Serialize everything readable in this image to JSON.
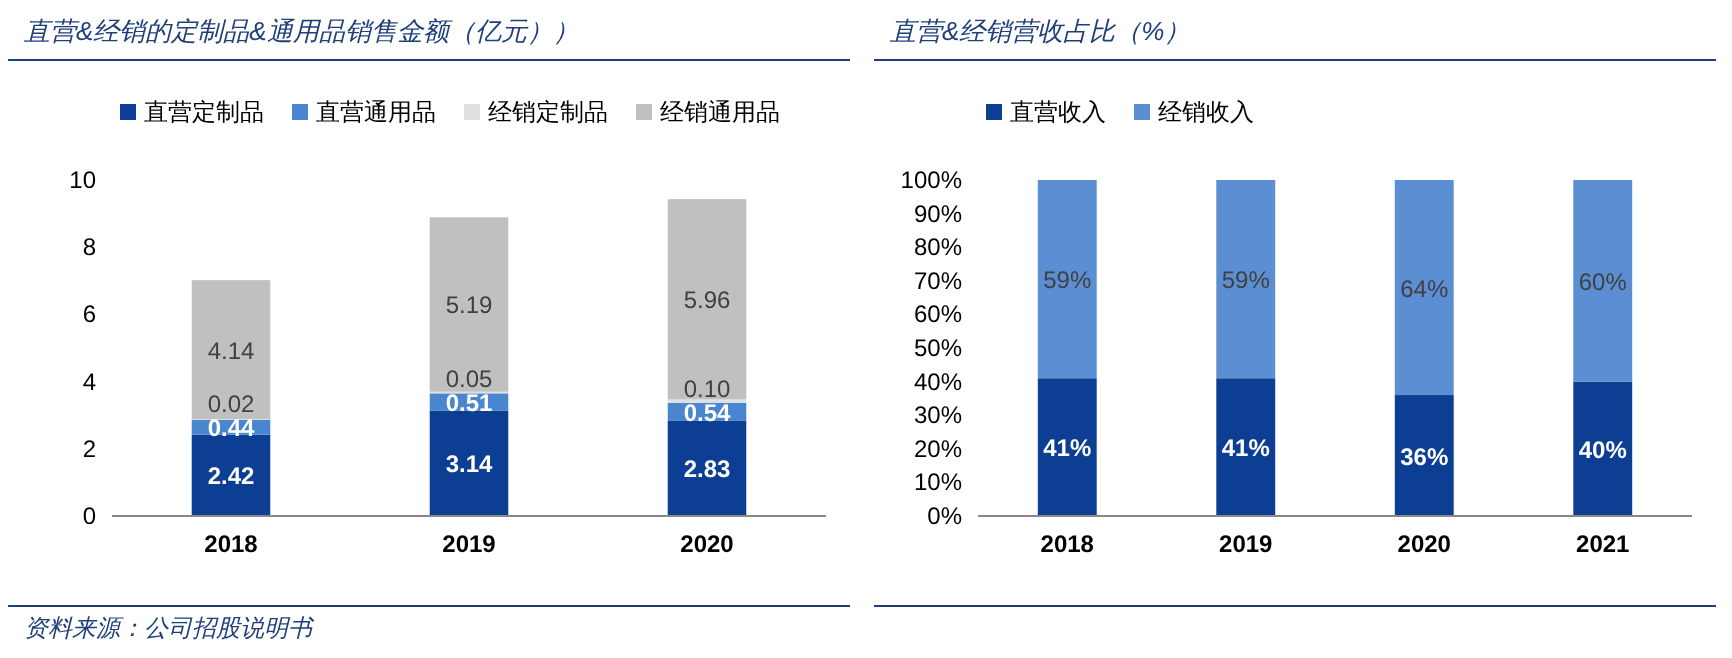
{
  "chart_data": [
    {
      "type": "bar",
      "title": "直营&经销的定制品&通用品销售金额（亿元））",
      "categories": [
        "2018",
        "2019",
        "2020"
      ],
      "stacked": true,
      "legend": "top",
      "data_labels": true,
      "ylim": [
        0,
        10
      ],
      "yticks": [
        0,
        2,
        4,
        6,
        8,
        10
      ],
      "series": [
        {
          "name": "直营定制品",
          "color": "#0c3f94",
          "values": [
            2.42,
            3.14,
            2.83
          ]
        },
        {
          "name": "直营通用品",
          "color": "#4a86d0",
          "values": [
            0.44,
            0.51,
            0.54
          ]
        },
        {
          "name": "经销定制品",
          "color": "#dfe0e2",
          "values": [
            0.02,
            0.05,
            0.1
          ],
          "value_labels": [
            "0.02",
            "0.05",
            "0.10"
          ]
        },
        {
          "name": "经销通用品",
          "color": "#c0c0c0",
          "values": [
            4.14,
            5.19,
            5.96
          ]
        }
      ],
      "annotations": [
        "资料来源：公司招股说明书"
      ]
    },
    {
      "type": "bar",
      "title": "直营&经销营收占比（%）",
      "categories": [
        "2018",
        "2019",
        "2020",
        "2021"
      ],
      "stacked": true,
      "legend": "top",
      "ylim": [
        0,
        100
      ],
      "yticks": [
        {
          "value": 0,
          "label": "0%"
        },
        {
          "value": 10,
          "label": "10%"
        },
        {
          "value": 20,
          "label": "20%"
        },
        {
          "value": 30,
          "label": "30%"
        },
        {
          "value": 40,
          "label": "40%"
        },
        {
          "value": 50,
          "label": "50%"
        },
        {
          "value": 60,
          "label": "60%"
        },
        {
          "value": 70,
          "label": "70%"
        },
        {
          "value": 80,
          "label": "80%"
        },
        {
          "value": 90,
          "label": "90%"
        },
        {
          "value": 100,
          "label": "100%"
        }
      ],
      "series": [
        {
          "name": "直营收入",
          "color": "#0c3f94",
          "values": [
            41,
            41,
            36,
            40
          ],
          "value_labels": [
            "41%",
            "41%",
            "36%",
            "40%"
          ]
        },
        {
          "name": "经销收入",
          "color": "#5b8ed3",
          "values": [
            59,
            59,
            64,
            60
          ],
          "value_labels": [
            "59%",
            "59%",
            "64%",
            "60%"
          ]
        }
      ]
    }
  ]
}
